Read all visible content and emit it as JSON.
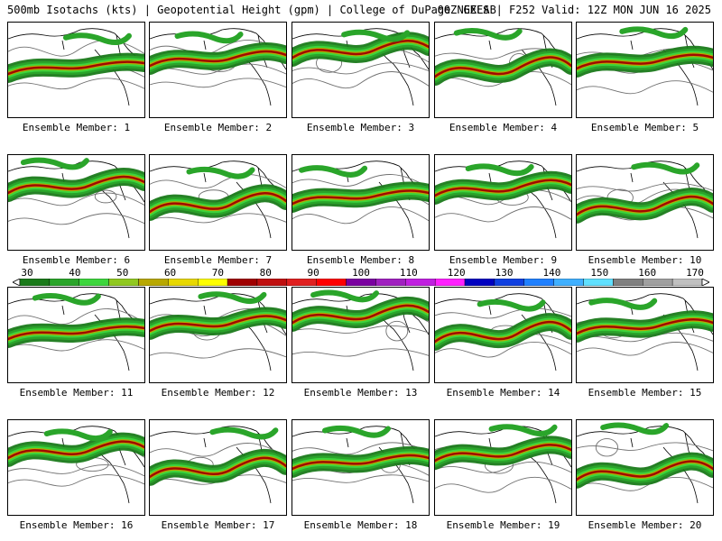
{
  "header": {
    "left": "500mb Isotachs (kts) | Geopotential Height (gpm) | College of DuPage NEXLAB",
    "right": "00Z GEFS | F252 Valid: 12Z MON JUN 16 2025"
  },
  "legend": {
    "labels": [
      "30",
      "40",
      "50",
      "60",
      "70",
      "80",
      "90",
      "100",
      "110",
      "120",
      "130",
      "140",
      "150",
      "160",
      "170"
    ],
    "colors": [
      "#1a7a1a",
      "#2aa52a",
      "#3dd63d",
      "#90c820",
      "#b8a800",
      "#e8d800",
      "#ffff00",
      "#a00000",
      "#c01010",
      "#e02020",
      "#ff0000",
      "#7a00a0",
      "#a020c0",
      "#c020e0",
      "#ff20ff",
      "#0000c0",
      "#1040e0",
      "#2080ff",
      "#40b0ff",
      "#60e0ff",
      "#808080",
      "#a0a0a0",
      "#c0c0c0"
    ]
  },
  "members": [
    {
      "label": "Ensemble Member: 1"
    },
    {
      "label": "Ensemble Member: 2"
    },
    {
      "label": "Ensemble Member: 3"
    },
    {
      "label": "Ensemble Member: 4"
    },
    {
      "label": "Ensemble Member: 5"
    },
    {
      "label": "Ensemble Member: 6"
    },
    {
      "label": "Ensemble Member: 7"
    },
    {
      "label": "Ensemble Member: 8"
    },
    {
      "label": "Ensemble Member: 9"
    },
    {
      "label": "Ensemble Member: 10"
    },
    {
      "label": "Ensemble Member: 11"
    },
    {
      "label": "Ensemble Member: 12"
    },
    {
      "label": "Ensemble Member: 13"
    },
    {
      "label": "Ensemble Member: 14"
    },
    {
      "label": "Ensemble Member: 15"
    },
    {
      "label": "Ensemble Member: 16"
    },
    {
      "label": "Ensemble Member: 17"
    },
    {
      "label": "Ensemble Member: 18"
    },
    {
      "label": "Ensemble Member: 19"
    },
    {
      "label": "Ensemble Member: 20"
    }
  ]
}
